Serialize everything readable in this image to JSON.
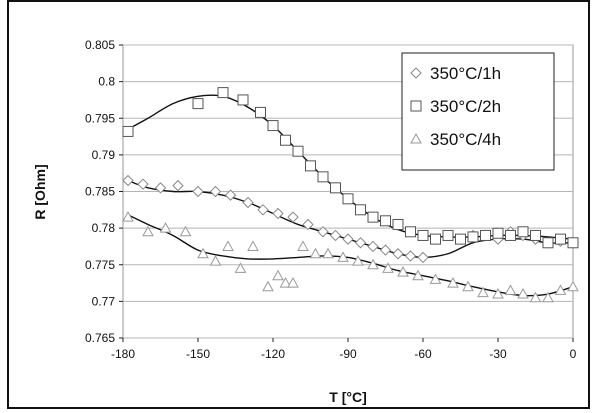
{
  "chart_data": {
    "type": "scatter",
    "title": "",
    "xlabel": "T [°C]",
    "ylabel": "R [Ohm]",
    "xlim": [
      -180,
      0
    ],
    "ylim": [
      0.765,
      0.805
    ],
    "x_ticks": [
      "-180",
      "-150",
      "-120",
      "-90",
      "-60",
      "-30",
      "0"
    ],
    "y_ticks": [
      "0.765",
      "0.77",
      "0.775",
      "0.78",
      "0.785",
      "0.79",
      "0.795",
      "0.8",
      "0.805"
    ],
    "grid": "horizontal",
    "legend_position": "top-right",
    "series": [
      {
        "name": "350°C/1h",
        "marker": "diamond",
        "x": [
          -178,
          -172,
          -165,
          -158,
          -150,
          -143,
          -137,
          -130,
          -124,
          -118,
          -112,
          -106,
          -100,
          -95,
          -90,
          -85,
          -80,
          -75,
          -70,
          -65,
          -60,
          -55,
          -50,
          -45,
          -40,
          -35,
          -30,
          -25,
          -20,
          -15,
          -10,
          -5,
          0
        ],
        "y": [
          0.7865,
          0.786,
          0.7855,
          0.7858,
          0.785,
          0.785,
          0.7845,
          0.7835,
          0.7825,
          0.782,
          0.7815,
          0.7805,
          0.7795,
          0.779,
          0.7785,
          0.778,
          0.7775,
          0.777,
          0.7765,
          0.7762,
          0.776,
          0.7785,
          0.779,
          0.7785,
          0.779,
          0.779,
          0.7785,
          0.7795,
          0.779,
          0.7785,
          0.778,
          0.7782,
          0.778
        ]
      },
      {
        "name": "350°C/2h",
        "marker": "square",
        "x": [
          -178,
          -150,
          -140,
          -132,
          -125,
          -120,
          -115,
          -110,
          -105,
          -100,
          -95,
          -90,
          -85,
          -80,
          -75,
          -70,
          -65,
          -60,
          -55,
          -50,
          -45,
          -40,
          -35,
          -30,
          -25,
          -20,
          -15,
          -10,
          -5,
          0
        ],
        "y": [
          0.7932,
          0.797,
          0.7985,
          0.7975,
          0.7958,
          0.794,
          0.792,
          0.7905,
          0.7885,
          0.787,
          0.7855,
          0.784,
          0.7825,
          0.7815,
          0.781,
          0.7805,
          0.7795,
          0.779,
          0.7785,
          0.779,
          0.7785,
          0.7788,
          0.779,
          0.7793,
          0.779,
          0.7795,
          0.779,
          0.778,
          0.7785,
          0.778
        ]
      },
      {
        "name": "350°C/4h",
        "marker": "triangle",
        "x": [
          -178,
          -170,
          -163,
          -155,
          -148,
          -143,
          -138,
          -133,
          -128,
          -122,
          -118,
          -115,
          -112,
          -108,
          -103,
          -98,
          -92,
          -86,
          -80,
          -74,
          -68,
          -62,
          -55,
          -48,
          -42,
          -36,
          -30,
          -25,
          -20,
          -15,
          -10,
          -5,
          0
        ],
        "y": [
          0.7815,
          0.7795,
          0.78,
          0.7795,
          0.7765,
          0.7755,
          0.7775,
          0.7745,
          0.7775,
          0.772,
          0.7735,
          0.7725,
          0.7725,
          0.7775,
          0.7765,
          0.7765,
          0.776,
          0.7755,
          0.775,
          0.7745,
          0.774,
          0.7735,
          0.773,
          0.7725,
          0.772,
          0.7712,
          0.771,
          0.7715,
          0.771,
          0.7705,
          0.7705,
          0.7715,
          0.772
        ]
      }
    ],
    "fit_curves": [
      {
        "x": [
          -178,
          -170,
          -160,
          -150,
          -140,
          -130,
          -120,
          -110,
          -100,
          -90,
          -80,
          -70,
          -60,
          -50,
          -40,
          -30,
          -20,
          -10,
          0
        ],
        "y": [
          0.7865,
          0.7855,
          0.785,
          0.785,
          0.7845,
          0.7835,
          0.782,
          0.7805,
          0.7795,
          0.7785,
          0.7775,
          0.7765,
          0.776,
          0.7765,
          0.778,
          0.7785,
          0.7785,
          0.778,
          0.778
        ]
      },
      {
        "x": [
          -178,
          -170,
          -160,
          -150,
          -140,
          -130,
          -120,
          -110,
          -100,
          -90,
          -80,
          -70,
          -60,
          -50,
          -40,
          -30,
          -20,
          -10,
          0
        ],
        "y": [
          0.7935,
          0.795,
          0.797,
          0.798,
          0.798,
          0.7965,
          0.794,
          0.7905,
          0.787,
          0.784,
          0.7815,
          0.7798,
          0.779,
          0.7788,
          0.7788,
          0.779,
          0.779,
          0.7788,
          0.7785
        ]
      },
      {
        "x": [
          -178,
          -170,
          -160,
          -150,
          -140,
          -130,
          -120,
          -110,
          -100,
          -90,
          -80,
          -70,
          -60,
          -50,
          -40,
          -30,
          -20,
          -10,
          0
        ],
        "y": [
          0.7818,
          0.7805,
          0.779,
          0.777,
          0.7762,
          0.7758,
          0.7758,
          0.776,
          0.7762,
          0.776,
          0.7752,
          0.7742,
          0.7735,
          0.7728,
          0.772,
          0.7713,
          0.7708,
          0.771,
          0.772
        ]
      }
    ]
  }
}
